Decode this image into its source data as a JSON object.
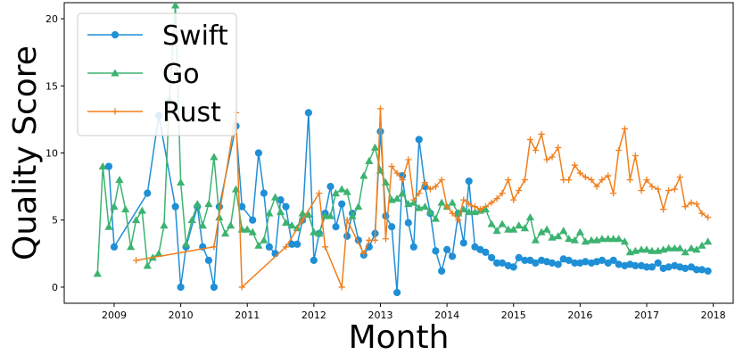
{
  "chart_data": {
    "type": "line",
    "title": "",
    "xlabel": "Month",
    "ylabel": "Quality Score",
    "xlim": [
      2008.25,
      2018.3
    ],
    "ylim": [
      -1.2,
      21.2
    ],
    "x_ticks": [
      2009,
      2010,
      2011,
      2012,
      2013,
      2014,
      2015,
      2016,
      2017,
      2018
    ],
    "x_tick_labels": [
      "2009",
      "2010",
      "2011",
      "2012",
      "2013",
      "2014",
      "2015",
      "2016",
      "2017",
      "2018"
    ],
    "y_ticks": [
      0,
      5,
      10,
      15,
      20
    ],
    "y_tick_labels": [
      "0",
      "5",
      "10",
      "15",
      "20"
    ],
    "grid": false,
    "legend_position": "top-left",
    "series": [
      {
        "name": "Swift",
        "color": "#1f8fd6",
        "marker": "circle",
        "x": [
          2008.92,
          2009.0,
          2009.5,
          2009.67,
          2009.92,
          2010.0,
          2010.08,
          2010.25,
          2010.33,
          2010.42,
          2010.5,
          2010.58,
          2010.83,
          2010.92,
          2011.08,
          2011.17,
          2011.25,
          2011.33,
          2011.42,
          2011.5,
          2011.58,
          2011.67,
          2011.75,
          2011.83,
          2011.92,
          2012.0,
          2012.08,
          2012.17,
          2012.25,
          2012.33,
          2012.42,
          2012.5,
          2012.58,
          2012.67,
          2012.75,
          2012.83,
          2012.92,
          2013.0,
          2013.08,
          2013.17,
          2013.25,
          2013.33,
          2013.42,
          2013.5,
          2013.58,
          2013.67,
          2013.75,
          2013.83,
          2013.92,
          2014.0,
          2014.08,
          2014.17,
          2014.25,
          2014.33,
          2014.42,
          2014.5,
          2014.58,
          2014.67,
          2014.75,
          2014.83,
          2014.92,
          2015.0,
          2015.08,
          2015.17,
          2015.25,
          2015.33,
          2015.42,
          2015.5,
          2015.58,
          2015.67,
          2015.75,
          2015.83,
          2015.92,
          2016.0,
          2016.08,
          2016.17,
          2016.25,
          2016.33,
          2016.42,
          2016.5,
          2016.58,
          2016.67,
          2016.75,
          2016.83,
          2016.92,
          2017.0,
          2017.08,
          2017.17,
          2017.25,
          2017.33,
          2017.42,
          2017.5,
          2017.58,
          2017.67,
          2017.75,
          2017.83,
          2017.92
        ],
        "y": [
          9.0,
          3.0,
          7.0,
          12.8,
          6.0,
          0.0,
          3.0,
          6.0,
          3.0,
          2.0,
          0.0,
          6.0,
          12.0,
          6.0,
          5.0,
          10.0,
          7.0,
          3.0,
          2.5,
          6.5,
          6.0,
          3.2,
          3.2,
          5.0,
          13.0,
          2.0,
          4.0,
          5.5,
          7.5,
          4.5,
          6.2,
          3.8,
          5.5,
          3.5,
          2.4,
          3.0,
          4.0,
          11.6,
          5.3,
          4.5,
          -0.4,
          8.3,
          4.8,
          3.0,
          11.0,
          7.5,
          5.5,
          2.7,
          1.2,
          2.8,
          2.3,
          5.5,
          3.3,
          7.9,
          3.0,
          2.8,
          2.6,
          2.2,
          1.8,
          1.8,
          1.6,
          1.5,
          2.2,
          2.0,
          2.0,
          1.8,
          2.0,
          1.9,
          1.8,
          1.7,
          2.1,
          2.0,
          1.8,
          1.8,
          1.9,
          1.8,
          1.9,
          2.0,
          1.8,
          2.0,
          1.7,
          1.6,
          1.7,
          1.6,
          1.6,
          1.5,
          1.5,
          1.8,
          1.4,
          1.5,
          1.6,
          1.5,
          1.4,
          1.5,
          1.3,
          1.3,
          1.2
        ]
      },
      {
        "name": "Go",
        "color": "#3cb371",
        "marker": "triangle",
        "x": [
          2008.75,
          2008.83,
          2008.92,
          2009.0,
          2009.08,
          2009.17,
          2009.25,
          2009.33,
          2009.42,
          2009.5,
          2009.58,
          2009.67,
          2009.75,
          2009.83,
          2009.92,
          2010.0,
          2010.08,
          2010.17,
          2010.25,
          2010.33,
          2010.42,
          2010.5,
          2010.58,
          2010.67,
          2010.75,
          2010.83,
          2010.92,
          2011.0,
          2011.08,
          2011.17,
          2011.25,
          2011.33,
          2011.42,
          2011.5,
          2011.58,
          2011.67,
          2011.75,
          2011.83,
          2011.92,
          2012.0,
          2012.08,
          2012.17,
          2012.25,
          2012.33,
          2012.42,
          2012.5,
          2012.58,
          2012.67,
          2012.75,
          2012.83,
          2012.92,
          2013.0,
          2013.08,
          2013.17,
          2013.25,
          2013.33,
          2013.42,
          2013.5,
          2013.58,
          2013.67,
          2013.75,
          2013.83,
          2013.92,
          2014.0,
          2014.08,
          2014.17,
          2014.25,
          2014.33,
          2014.42,
          2014.5,
          2014.58,
          2014.67,
          2014.75,
          2014.83,
          2014.92,
          2015.0,
          2015.08,
          2015.17,
          2015.25,
          2015.33,
          2015.42,
          2015.5,
          2015.58,
          2015.67,
          2015.75,
          2015.83,
          2015.92,
          2016.0,
          2016.08,
          2016.17,
          2016.25,
          2016.33,
          2016.42,
          2016.5,
          2016.58,
          2016.67,
          2016.75,
          2016.83,
          2016.92,
          2017.0,
          2017.08,
          2017.17,
          2017.25,
          2017.33,
          2017.42,
          2017.5,
          2017.58,
          2017.67,
          2017.75,
          2017.83,
          2017.92
        ],
        "y": [
          1.0,
          9.0,
          4.5,
          6.0,
          8.0,
          5.8,
          3.0,
          5.0,
          5.7,
          1.6,
          2.2,
          2.5,
          4.6,
          14.0,
          21.0,
          7.8,
          3.2,
          5.0,
          6.2,
          4.6,
          6.2,
          9.7,
          5.2,
          4.0,
          4.6,
          7.3,
          4.3,
          4.3,
          4.1,
          3.1,
          3.5,
          5.5,
          6.7,
          5.6,
          4.8,
          4.6,
          4.4,
          5.5,
          5.4,
          4.1,
          4.0,
          5.3,
          5.3,
          7.0,
          7.3,
          7.1,
          5.3,
          6.0,
          8.3,
          9.4,
          10.4,
          8.7,
          7.8,
          6.5,
          6.6,
          7.0,
          6.2,
          6.3,
          5.9,
          6.0,
          5.6,
          5.1,
          6.3,
          6.0,
          6.3,
          5.5,
          5.8,
          5.6,
          5.6,
          5.7,
          5.8,
          4.7,
          4.2,
          4.7,
          4.3,
          4.3,
          4.6,
          4.4,
          5.2,
          3.5,
          4.1,
          4.3,
          3.7,
          3.8,
          4.2,
          3.6,
          3.5,
          4.1,
          3.4,
          3.5,
          3.5,
          3.6,
          3.6,
          3.6,
          3.6,
          3.4,
          2.6,
          2.7,
          2.8,
          2.8,
          2.7,
          2.7,
          2.8,
          2.9,
          2.9,
          2.9,
          2.6,
          2.9,
          2.8,
          3.1,
          3.4
        ]
      },
      {
        "name": "Rust",
        "color": "#f07f1c",
        "marker": "plus",
        "x": [
          2009.33,
          2010.5,
          2010.83,
          2010.92,
          2011.58,
          2011.83,
          2012.08,
          2012.17,
          2012.42,
          2012.5,
          2012.75,
          2012.83,
          2012.92,
          2013.0,
          2013.08,
          2013.17,
          2013.25,
          2013.33,
          2013.42,
          2013.5,
          2013.58,
          2013.67,
          2013.75,
          2013.83,
          2013.92,
          2014.0,
          2014.08,
          2014.17,
          2014.25,
          2014.33,
          2014.42,
          2014.5,
          2014.58,
          2014.67,
          2014.75,
          2014.83,
          2014.92,
          2015.0,
          2015.08,
          2015.17,
          2015.25,
          2015.33,
          2015.42,
          2015.5,
          2015.58,
          2015.67,
          2015.75,
          2015.83,
          2015.92,
          2016.0,
          2016.08,
          2016.17,
          2016.25,
          2016.33,
          2016.42,
          2016.5,
          2016.58,
          2016.67,
          2016.75,
          2016.83,
          2016.92,
          2017.0,
          2017.08,
          2017.17,
          2017.25,
          2017.33,
          2017.42,
          2017.5,
          2017.58,
          2017.67,
          2017.75,
          2017.83,
          2017.92
        ],
        "y": [
          2.0,
          3.0,
          13.0,
          0.0,
          3.0,
          5.0,
          7.0,
          3.0,
          0.0,
          5.0,
          2.5,
          3.5,
          3.5,
          13.3,
          3.6,
          9.0,
          8.5,
          8.0,
          9.5,
          6.5,
          7.0,
          7.8,
          7.3,
          7.5,
          8.0,
          6.0,
          5.5,
          5.0,
          6.5,
          6.2,
          6.0,
          5.8,
          6.0,
          6.3,
          6.6,
          7.0,
          8.0,
          6.5,
          7.2,
          8.0,
          11.0,
          10.2,
          11.4,
          9.5,
          9.7,
          10.4,
          8.0,
          8.0,
          9.1,
          8.5,
          8.2,
          8.0,
          7.5,
          8.0,
          8.3,
          7.0,
          10.2,
          11.8,
          8.0,
          9.8,
          7.2,
          8.0,
          7.5,
          7.3,
          5.8,
          7.2,
          7.3,
          8.2,
          6.0,
          6.3,
          6.2,
          5.5,
          5.2
        ]
      }
    ]
  }
}
